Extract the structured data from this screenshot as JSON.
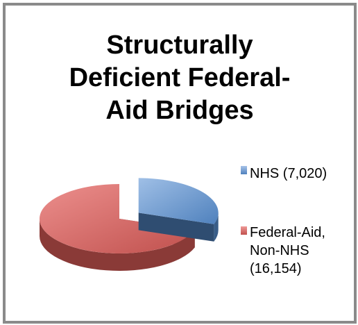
{
  "chart_data": {
    "type": "pie",
    "style": "3d-exploded",
    "title": "Structurally\nDeficient Federal-\nAid Bridges",
    "legend_position": "right",
    "series": [
      {
        "labels": [
          "NHS (7,020)",
          "Federal-Aid, Non-NHS (16,154)"
        ],
        "values": [
          7020,
          16154
        ],
        "colors": [
          "#4f81bd",
          "#c0504d"
        ],
        "exploded": [
          true,
          false
        ]
      }
    ]
  }
}
